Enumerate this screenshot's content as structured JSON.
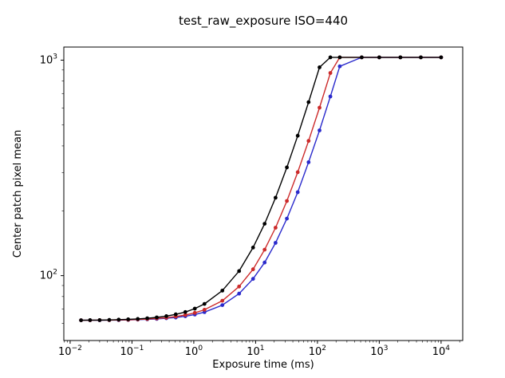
{
  "chart_data": {
    "type": "line",
    "title": "test_raw_exposure ISO=440",
    "xlabel": "Exposure time (ms)",
    "ylabel": "Center patch pixel mean",
    "xscale": "log",
    "yscale": "log",
    "xlim": [
      0.0079,
      22387
    ],
    "ylim": [
      50,
      1150
    ],
    "x_tick_exponents": [
      -2,
      -1,
      0,
      1,
      2,
      3,
      4
    ],
    "y_tick_exponents": [
      2,
      3
    ],
    "grid": false,
    "legend": "none",
    "x": [
      0.015,
      0.021,
      0.03,
      0.043,
      0.061,
      0.087,
      0.124,
      0.177,
      0.252,
      0.36,
      0.51,
      0.73,
      1.04,
      1.49,
      2.9,
      5.4,
      9.1,
      14,
      21,
      32,
      48,
      72,
      108,
      162,
      230,
      520,
      1000,
      2200,
      4700,
      10000
    ],
    "series": [
      {
        "name": "black",
        "color": "#000000",
        "marker": "circle",
        "values": [
          62.1,
          62.2,
          62.2,
          62.3,
          62.5,
          62.7,
          63.0,
          63.4,
          64.0,
          64.9,
          66.1,
          67.8,
          70.3,
          73.9,
          85.2,
          105,
          135,
          174,
          230,
          318,
          446,
          638,
          926,
          1030,
          1030,
          1030,
          1030,
          1030,
          1030,
          1030
        ]
      },
      {
        "name": "red",
        "color": "#cc2a2a",
        "marker": "circle",
        "values": [
          62.1,
          62.1,
          62.2,
          62.2,
          62.3,
          62.4,
          62.6,
          62.9,
          63.3,
          63.8,
          64.6,
          65.7,
          67.2,
          69.5,
          76.5,
          89,
          107,
          132,
          167,
          222,
          302,
          422,
          602,
          872,
          1030,
          1030,
          1030,
          1030,
          1030,
          1030
        ]
      },
      {
        "name": "blue",
        "color": "#2a2acc",
        "marker": "circle",
        "values": [
          62.1,
          62.1,
          62.1,
          62.2,
          62.2,
          62.3,
          62.5,
          62.7,
          63.0,
          63.4,
          63.9,
          64.8,
          66.0,
          67.7,
          73.0,
          82.5,
          96.6,
          115,
          142,
          184,
          244,
          336,
          472,
          678,
          936,
          1030,
          1030,
          1030,
          1030,
          1030
        ]
      }
    ]
  }
}
